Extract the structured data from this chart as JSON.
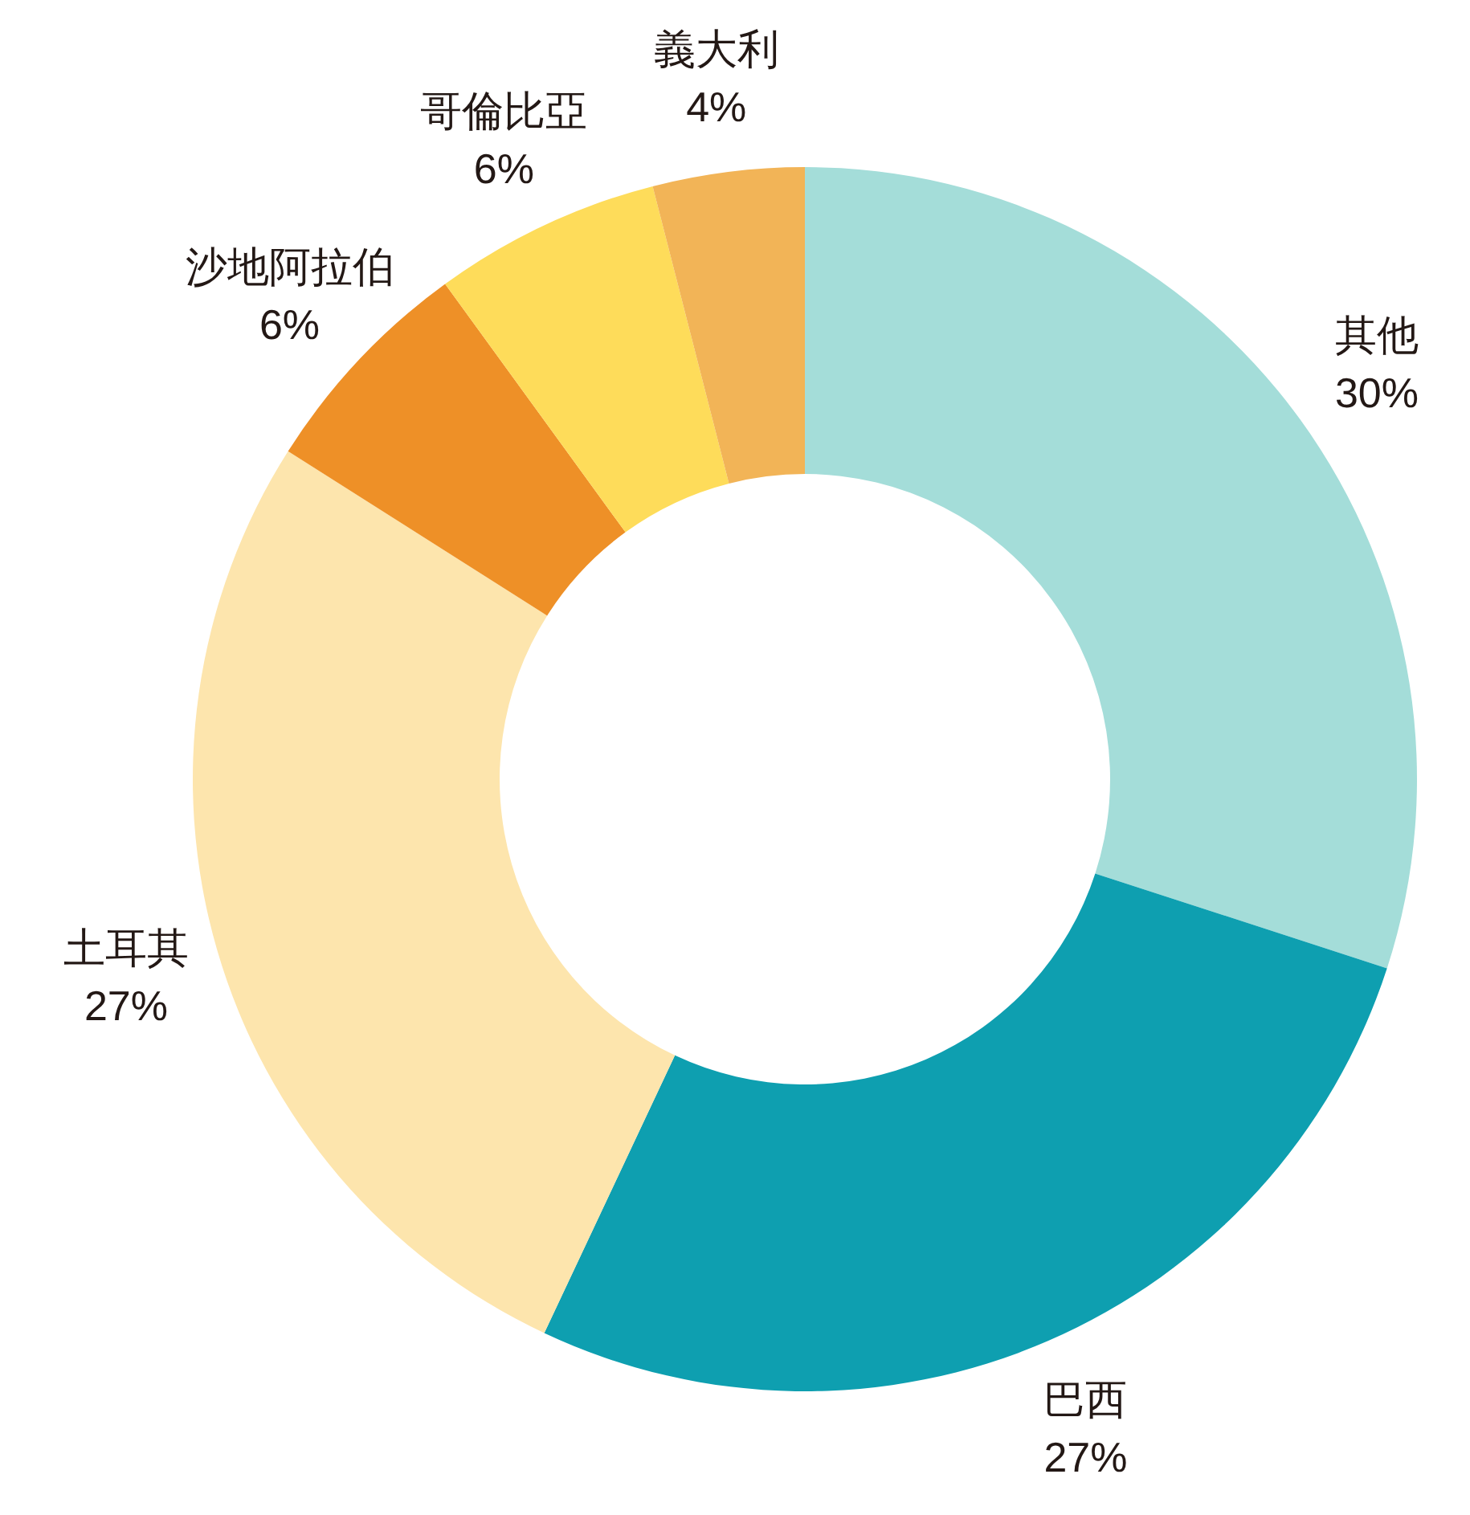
{
  "chart_data": {
    "type": "donut",
    "categories": [
      "其他",
      "巴西",
      "土耳其",
      "沙地阿拉伯",
      "哥倫比亞",
      "義大利"
    ],
    "values": [
      30,
      27,
      27,
      6,
      6,
      4
    ],
    "value_labels": [
      "30%",
      "27%",
      "27%",
      "6%",
      "6%",
      "4%"
    ],
    "colors": [
      "#a4ddd9",
      "#0e9fb0",
      "#fde5ad",
      "#ee9027",
      "#fedc5a",
      "#f2b457"
    ]
  }
}
